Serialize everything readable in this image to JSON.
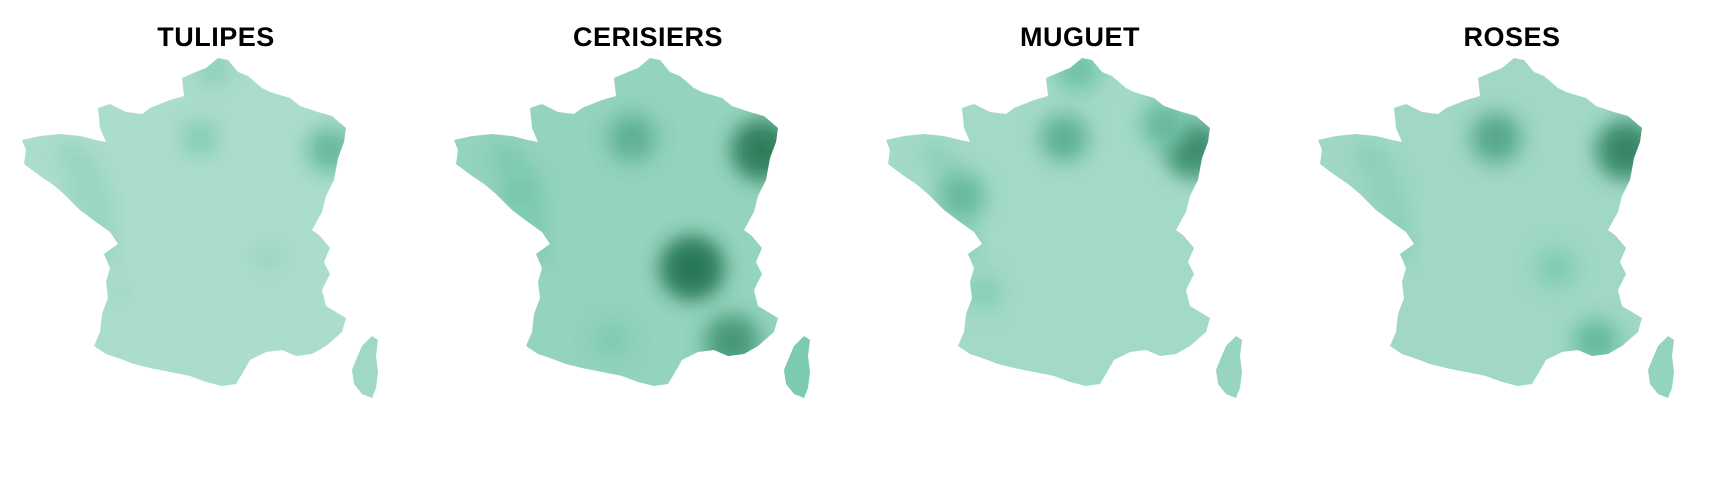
{
  "colors": {
    "background": "#ffffff",
    "base_fill": "#c3e6d9",
    "mid_fill": "#74c7ab",
    "dark_fill": "#1f6e4c",
    "title_text": "#000000"
  },
  "panels": [
    {
      "title": "TULIPES",
      "base_level": 0.15,
      "hotspots": [
        {
          "place": "Paris",
          "intensity": 0.35
        },
        {
          "place": "Alsace",
          "intensity": 0.55
        },
        {
          "place": "Nord",
          "intensity": 0.3
        },
        {
          "place": "Bretagne",
          "intensity": 0.25
        },
        {
          "place": "Lyon",
          "intensity": 0.22
        },
        {
          "place": "Bordeaux",
          "intensity": 0.18
        }
      ]
    },
    {
      "title": "CERISIERS",
      "base_level": 0.3,
      "hotspots": [
        {
          "place": "Rhône-Alpes",
          "intensity": 0.95
        },
        {
          "place": "Alsace",
          "intensity": 0.9
        },
        {
          "place": "Paris",
          "intensity": 0.6
        },
        {
          "place": "Provence",
          "intensity": 0.75
        },
        {
          "place": "Bretagne",
          "intensity": 0.45
        },
        {
          "place": "Corse",
          "intensity": 0.45
        },
        {
          "place": "Sud-Ouest",
          "intensity": 0.4
        }
      ]
    },
    {
      "title": "MUGUET",
      "base_level": 0.2,
      "hotspots": [
        {
          "place": "Paris",
          "intensity": 0.6
        },
        {
          "place": "Alsace",
          "intensity": 0.8
        },
        {
          "place": "Nord",
          "intensity": 0.5
        },
        {
          "place": "Lorraine",
          "intensity": 0.55
        },
        {
          "place": "Loire-Atlantique",
          "intensity": 0.55
        },
        {
          "place": "Bordeaux",
          "intensity": 0.35
        }
      ]
    },
    {
      "title": "ROSES",
      "base_level": 0.22,
      "hotspots": [
        {
          "place": "Paris",
          "intensity": 0.65
        },
        {
          "place": "Alsace",
          "intensity": 0.85
        },
        {
          "place": "Provence",
          "intensity": 0.55
        },
        {
          "place": "Rhône-Alpes",
          "intensity": 0.4
        },
        {
          "place": "Bretagne",
          "intensity": 0.3
        },
        {
          "place": "Corse",
          "intensity": 0.3
        }
      ]
    }
  ]
}
